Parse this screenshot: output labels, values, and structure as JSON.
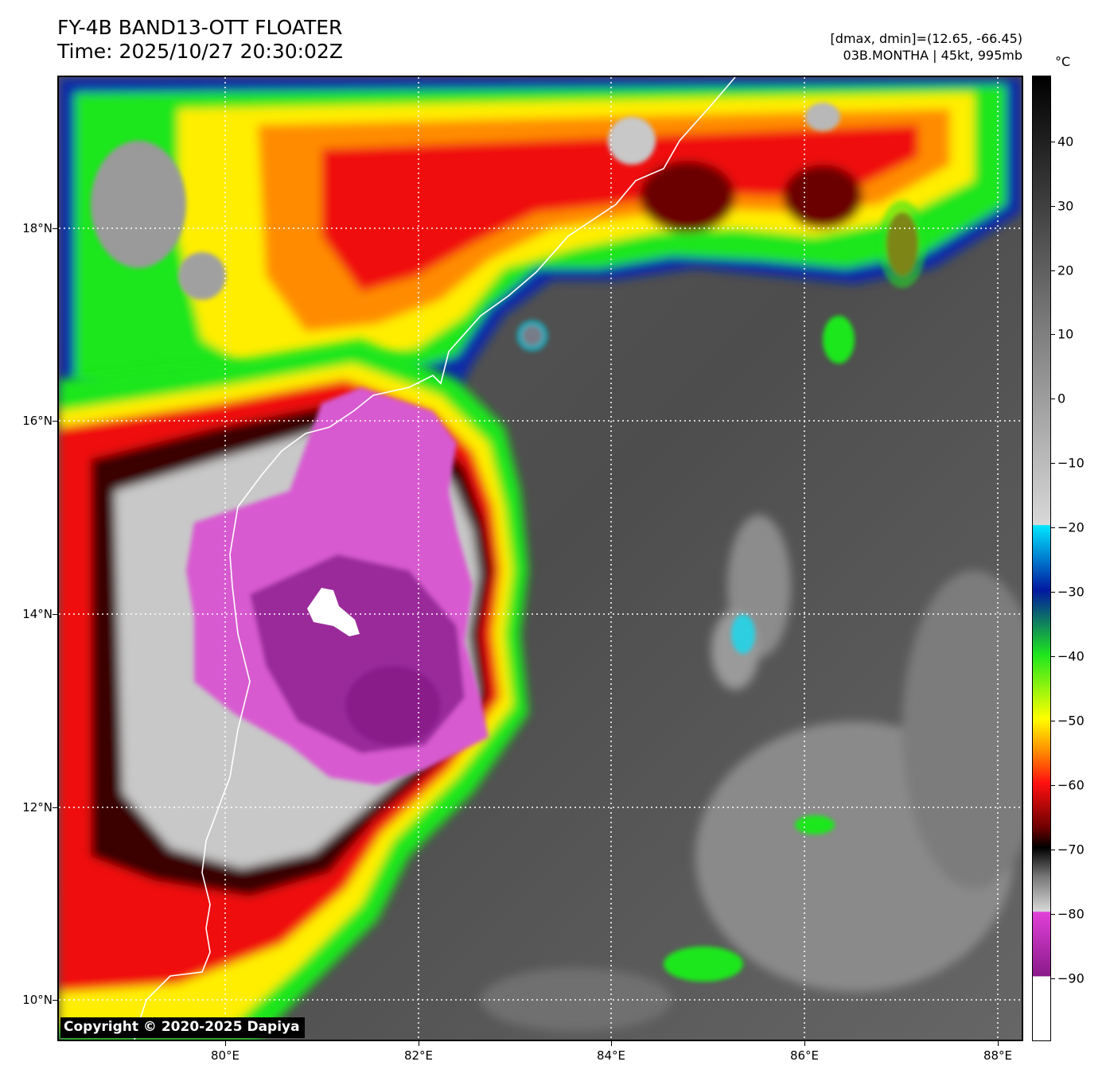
{
  "header": {
    "title": "FY-4B BAND13-OTT FLOATER",
    "time": "Time: 2025/10/27 20:30:02Z",
    "range": "[dmax, dmin]=(12.65, -66.45)",
    "storm": "03B.MONTHA | 45kt, 995mb"
  },
  "map": {
    "lat_labels": [
      "18°N",
      "16°N",
      "14°N",
      "12°N",
      "10°N"
    ],
    "lon_labels": [
      "80°E",
      "82°E",
      "84°E",
      "86°E",
      "88°E"
    ],
    "extent": {
      "lon_min": 78.27,
      "lon_max": 88.27,
      "lat_min": 9.58,
      "lat_max": 19.58
    },
    "gridlines": true,
    "copyright": "Copyright © 2020-2025 Dapiya"
  },
  "colorbar": {
    "unit": "°C",
    "range": [
      -100,
      50
    ],
    "tick_labels": [
      "40",
      "30",
      "20",
      "10",
      "0",
      "−10",
      "−20",
      "−30",
      "−40",
      "−50",
      "−60",
      "−70",
      "−80",
      "−90"
    ],
    "colors": {
      "warm_black": "#000000",
      "gray_mid": "#777777",
      "gray_light": "#d8d8d8",
      "cyan": "#00e5ff",
      "blue": "#0018a0",
      "green": "#1ee61e",
      "yellow": "#ffff00",
      "orange": "#ff8c00",
      "red": "#ff1010",
      "dark_red": "#6a0000",
      "magenta": "#e040d8",
      "purple": "#8a1a8a",
      "white": "#ffffff"
    }
  }
}
